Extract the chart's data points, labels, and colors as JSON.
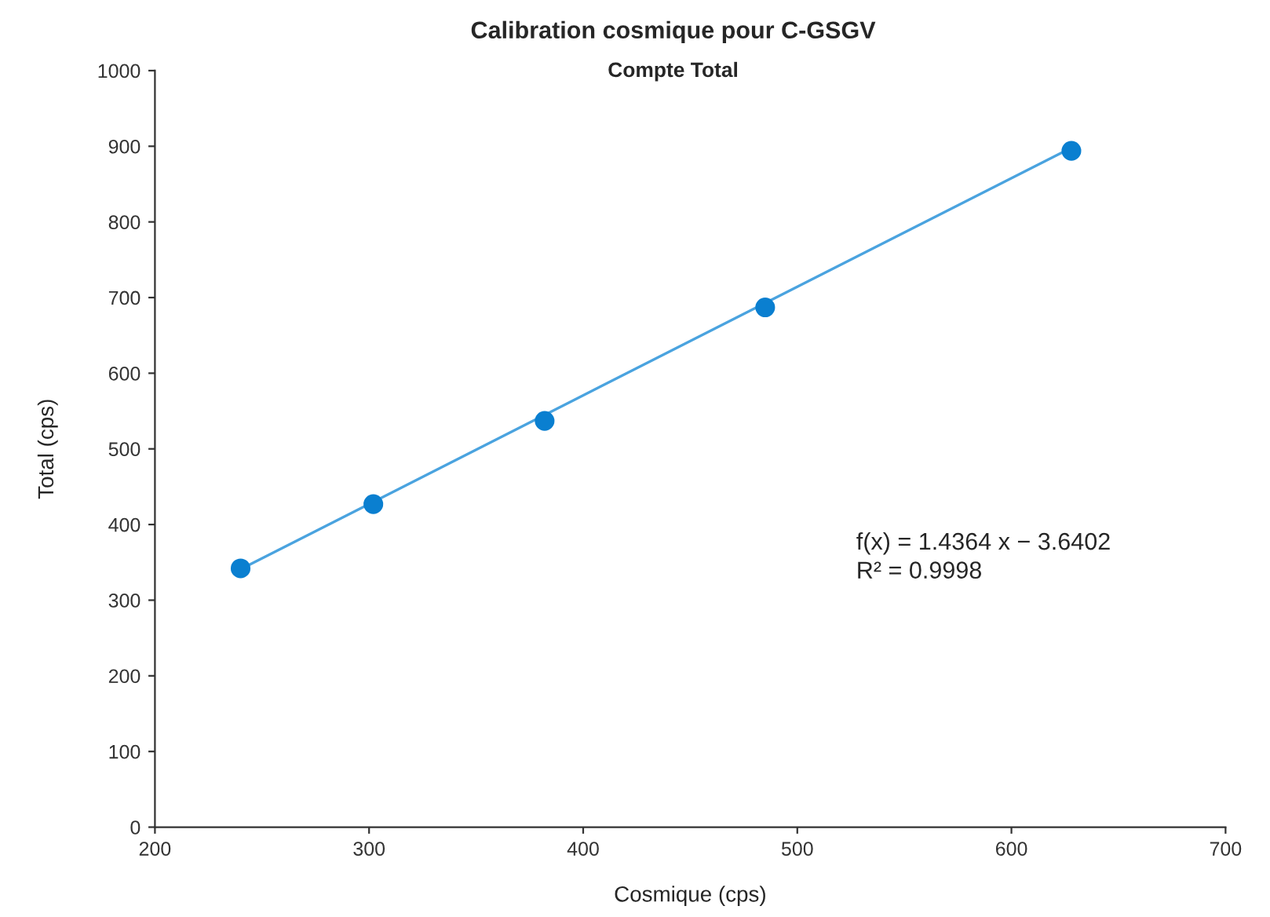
{
  "chart_data": {
    "type": "scatter",
    "title": "Calibration cosmique pour C-GSGV",
    "subtitle": "Compte Total",
    "xlabel": "Cosmique (cps)",
    "ylabel": "Total (cps)",
    "series": [
      {
        "color": "#0a7fd0",
        "x": [
          240,
          302,
          382,
          485,
          628
        ],
        "values": [
          342,
          427,
          537,
          687,
          894
        ]
      },
      {
        "type": "line",
        "color": "#4aa3df",
        "x": [
          240,
          628
        ],
        "values": [
          341,
          898
        ]
      }
    ],
    "annotations": [
      "f(x) = 1.4364 x − 3.6402",
      "R² = 0.9998"
    ],
    "xlim": [
      200,
      700
    ],
    "xticks": [
      200,
      300,
      400,
      500,
      600,
      700
    ],
    "ylim": [
      0,
      1000
    ],
    "yticks": [
      0,
      100,
      200,
      300,
      400,
      500,
      600,
      700,
      800,
      900,
      1000
    ],
    "grid": false
  }
}
